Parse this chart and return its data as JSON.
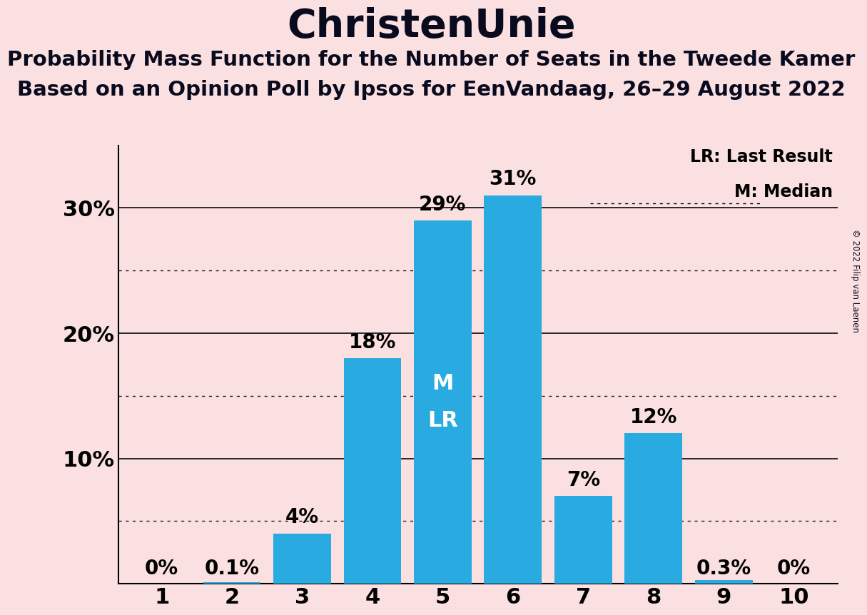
{
  "title": "ChristenUnie",
  "subtitle1": "Probability Mass Function for the Number of Seats in the Tweede Kamer",
  "subtitle2": "Based on an Opinion Poll by Ipsos for EenVandaag, 26–29 August 2022",
  "copyright": "© 2022 Filip van Laenen",
  "seats": [
    1,
    2,
    3,
    4,
    5,
    6,
    7,
    8,
    9,
    10
  ],
  "probabilities": [
    0.0,
    0.1,
    4.0,
    18.0,
    29.0,
    31.0,
    7.0,
    12.0,
    0.3,
    0.0
  ],
  "bar_labels": [
    "0%",
    "0.1%",
    "4%",
    "18%",
    "29%",
    "31%",
    "7%",
    "12%",
    "0.3%",
    "0%"
  ],
  "bar_color": "#29ABE2",
  "background_color": "#FAE0E0",
  "median_seat": 5,
  "last_result_seat": 5,
  "ylim": [
    0,
    35
  ],
  "solid_yticks": [
    10,
    20,
    30
  ],
  "dotted_yticks": [
    5,
    15,
    25
  ],
  "legend_lr": "LR: Last Result",
  "legend_m": "M: Median",
  "bar_label_fontsize": 20,
  "title_fontsize": 40,
  "subtitle_fontsize": 21,
  "tick_fontsize": 22,
  "inside_label_fontsize": 22
}
